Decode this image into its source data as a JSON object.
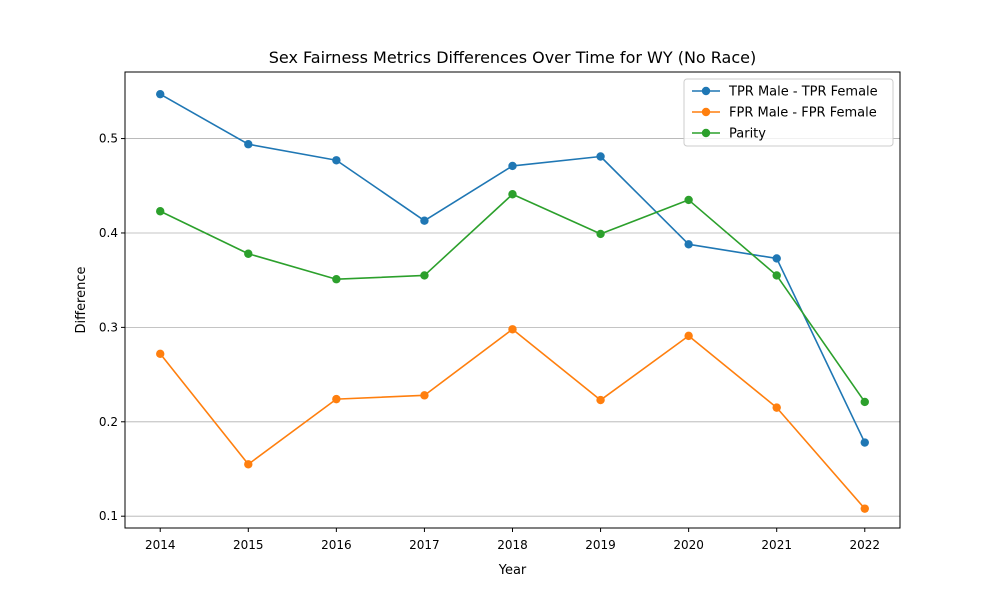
{
  "chart_data": {
    "type": "line",
    "title": "Sex Fairness Metrics Differences Over Time for WY (No Race)",
    "xlabel": "Year",
    "ylabel": "Difference",
    "x": [
      2014,
      2015,
      2016,
      2017,
      2018,
      2019,
      2020,
      2021,
      2022
    ],
    "xlim": [
      2013.6,
      2022.4
    ],
    "ylim": [
      0.0875,
      0.5705
    ],
    "yticks": [
      0.1,
      0.2,
      0.3,
      0.4,
      0.5
    ],
    "ytick_labels": [
      "0.1",
      "0.2",
      "0.3",
      "0.4",
      "0.5"
    ],
    "grid": "horizontal",
    "legend_position": "top-right",
    "series": [
      {
        "name": "TPR Male - TPR Female",
        "color": "#1f77b4",
        "values": [
          0.547,
          0.494,
          0.477,
          0.413,
          0.471,
          0.481,
          0.388,
          0.373,
          0.178
        ]
      },
      {
        "name": "FPR Male - FPR Female",
        "color": "#ff7f0e",
        "values": [
          0.272,
          0.155,
          0.224,
          0.228,
          0.298,
          0.223,
          0.291,
          0.215,
          0.108
        ]
      },
      {
        "name": "Parity",
        "color": "#2ca02c",
        "values": [
          0.423,
          0.378,
          0.351,
          0.355,
          0.441,
          0.399,
          0.435,
          0.355,
          0.221
        ]
      }
    ]
  }
}
